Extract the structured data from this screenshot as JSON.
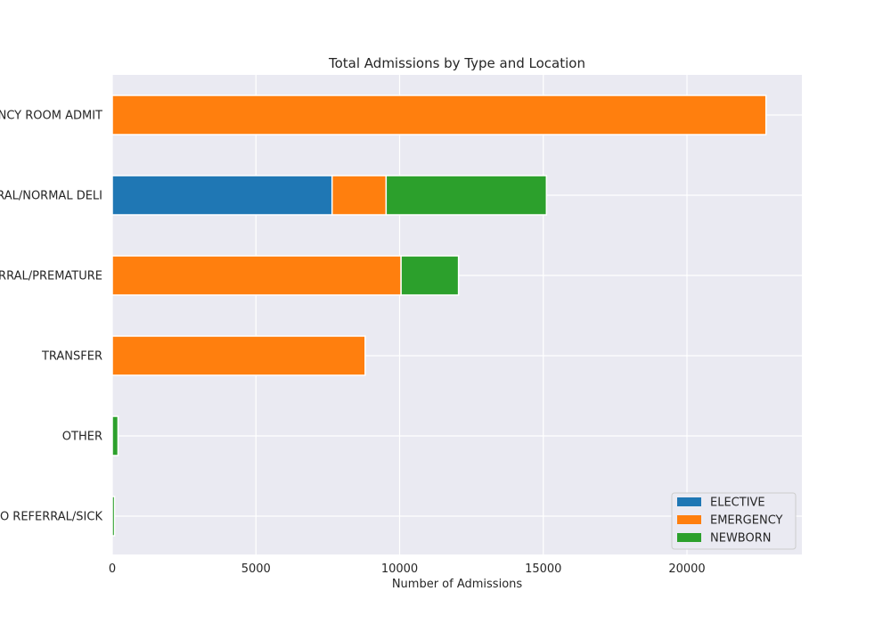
{
  "chart_data": {
    "type": "bar",
    "orientation": "horizontal",
    "stacked": true,
    "title": "Total Admissions by Type and Location",
    "xlabel": "Number of Admissions",
    "ylabel": "",
    "xlim": [
      0,
      24000
    ],
    "xticks": [
      0,
      5000,
      10000,
      15000,
      20000
    ],
    "grid": true,
    "legend_position": "lower-right",
    "categories": [
      "EMERGENCY ROOM ADMIT",
      "PHYS REFERRAL/NORMAL DELI",
      "CLINIC REFERRAL/PREMATURE",
      "TRANSFER",
      "OTHER",
      "HMO REFERRAL/SICK"
    ],
    "series": [
      {
        "name": "ELECTIVE",
        "color": "#1f77b4",
        "values": [
          0,
          7650,
          0,
          0,
          0,
          0
        ]
      },
      {
        "name": "EMERGENCY",
        "color": "#ff7f0e",
        "values": [
          22750,
          1880,
          10050,
          8800,
          0,
          0
        ]
      },
      {
        "name": "NEWBORN",
        "color": "#2ca02c",
        "values": [
          0,
          5580,
          2000,
          0,
          200,
          80
        ]
      }
    ]
  }
}
